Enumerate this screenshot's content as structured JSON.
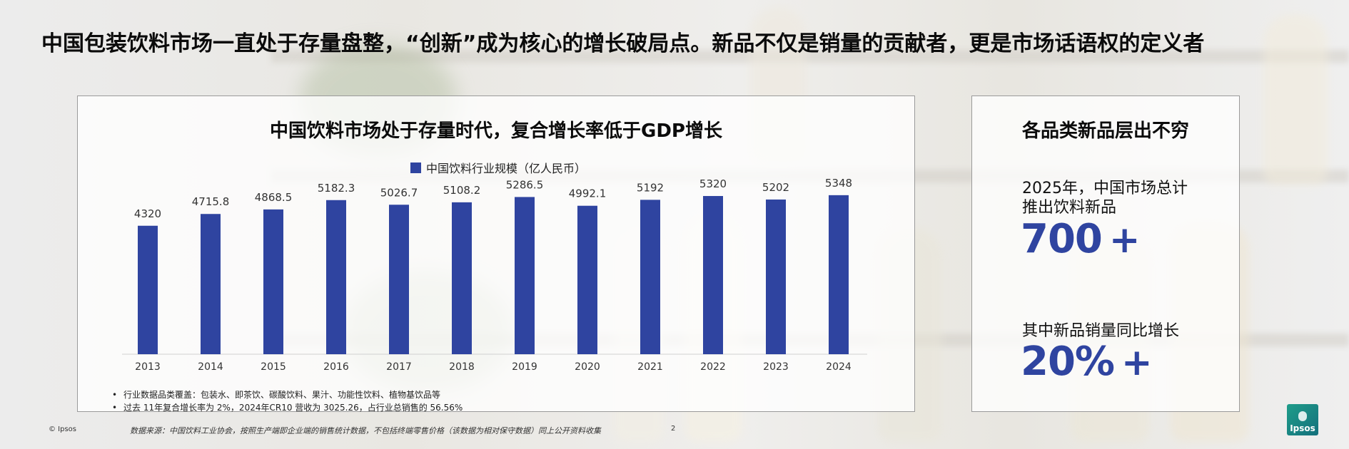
{
  "headline": "中国包装饮料市场一直处于存量盘整，“创新”成为核心的增长破局点。新品不仅是销量的贡献者，更是市场话语权的定义者",
  "chart_data": {
    "type": "bar",
    "title": "中国饮料市场处于存量时代，复合增长率低于GDP增长",
    "categories": [
      "2013",
      "2014",
      "2015",
      "2016",
      "2017",
      "2018",
      "2019",
      "2020",
      "2021",
      "2022",
      "2023",
      "2024"
    ],
    "series": [
      {
        "name": "中国饮料行业规模（亿人民币）",
        "values": [
          4320,
          4715.8,
          4868.5,
          5182.3,
          5026.7,
          5108.2,
          5286.5,
          4992.1,
          5192,
          5320,
          5202,
          5348
        ],
        "labels": [
          "4320",
          "4715.8",
          "4868.5",
          "5182.3",
          "5026.7",
          "5108.2",
          "5286.5",
          "4992.1",
          "5192",
          "5320",
          "5202",
          "5348"
        ]
      }
    ],
    "ylim": [
      0,
      5800
    ],
    "grid": false,
    "legend_position": "top",
    "bar_color": "#2f44a0"
  },
  "notes": [
    "行业数据品类覆盖：包装水、即茶饮、碳酸饮料、果汁、功能性饮料、植物基饮品等",
    "过去 11年复合增长率为 2%，2024年CR10 营收为 3025.26，占行业总销售的 56.56%"
  ],
  "right_panel": {
    "title": "各品类新品层出不穷",
    "stat1_line1": "2025年，中国市场总计",
    "stat1_line2": "推出饮料新品",
    "stat1_value": "700",
    "stat1_suffix": "+",
    "stat2_text": "其中新品销量同比增长",
    "stat2_value": "20%",
    "stat2_suffix": "+"
  },
  "footer": {
    "copyright": "© Ipsos",
    "source": "数据来源：中国饮料工业协会，按照生产端即企业端的销售统计数据，不包括终端零售价格（该数据为相对保守数据）同上公开资料收集",
    "page": "2"
  },
  "logo_text": "Ipsos",
  "colors": {
    "accent": "#2f44a0",
    "logo": "#1f9d8a"
  }
}
